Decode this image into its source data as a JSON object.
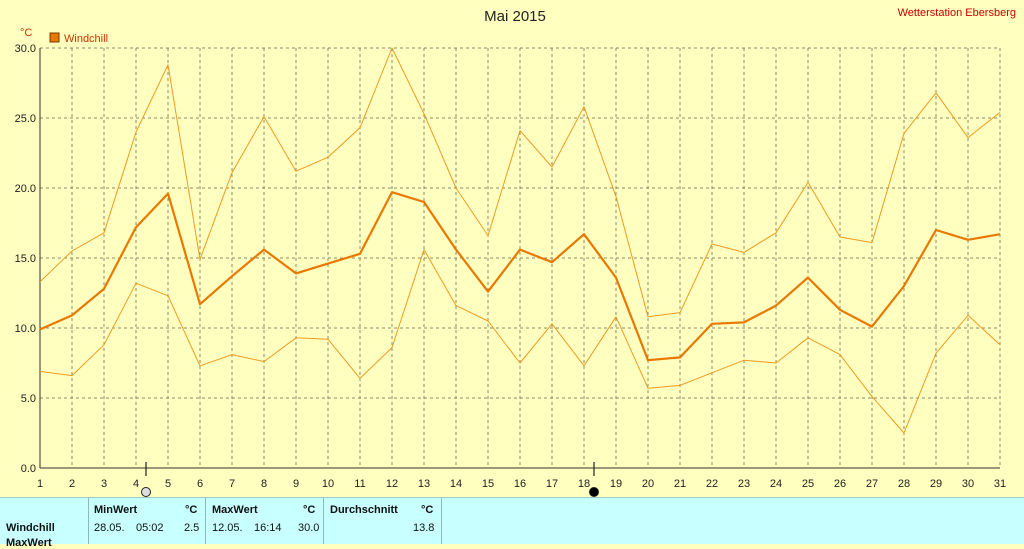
{
  "chart_data": {
    "type": "line",
    "title": "Mai 2015",
    "station": "Wetterstation Ebersberg",
    "yunit": "°C",
    "legend": "Windchill",
    "legend_placement": "top-left",
    "grid": true,
    "ylim": [
      0,
      30
    ],
    "yticks": [
      "0.0",
      "5.0",
      "10.0",
      "15.0",
      "20.0",
      "25.0",
      "30.0"
    ],
    "x": [
      1,
      2,
      3,
      4,
      5,
      6,
      7,
      8,
      9,
      10,
      11,
      12,
      13,
      14,
      15,
      16,
      17,
      18,
      19,
      20,
      21,
      22,
      23,
      24,
      25,
      26,
      27,
      28,
      29,
      30,
      31
    ],
    "series": [
      {
        "name": "Windchill",
        "values": [
          9.9,
          10.9,
          12.8,
          17.2,
          19.6,
          11.7,
          13.7,
          15.6,
          13.9,
          14.6,
          15.3,
          19.7,
          19.0,
          15.6,
          12.6,
          15.6,
          14.7,
          16.7,
          13.6,
          7.7,
          7.9,
          10.3,
          10.4,
          11.6,
          13.6,
          11.3,
          10.1,
          13.0,
          17.0,
          16.3,
          16.7
        ]
      },
      {
        "name": "max",
        "values": [
          13.3,
          15.5,
          16.8,
          24.0,
          28.8,
          14.9,
          21.1,
          25.1,
          21.2,
          22.2,
          24.3,
          30.0,
          25.3,
          20.0,
          16.6,
          24.1,
          21.5,
          25.8,
          19.4,
          10.8,
          11.1,
          16.0,
          15.4,
          16.8,
          20.4,
          16.5,
          16.1,
          23.9,
          26.8,
          23.6,
          25.4
        ]
      },
      {
        "name": "min",
        "values": [
          6.9,
          6.6,
          8.8,
          13.2,
          12.3,
          7.3,
          8.1,
          7.6,
          9.3,
          9.2,
          6.4,
          8.6,
          15.6,
          11.6,
          10.5,
          7.5,
          10.3,
          7.3,
          10.8,
          5.7,
          5.9,
          6.8,
          7.7,
          7.5,
          9.3,
          8.1,
          5.1,
          2.5,
          8.2,
          10.9,
          8.8
        ]
      }
    ],
    "markers": [
      {
        "day": 4,
        "symbol": "first-quarter-moon"
      },
      {
        "day": 18,
        "symbol": "new-moon"
      }
    ],
    "colors": {
      "mean": "#e87800",
      "range": "#f09a20",
      "grid": "#8a8a70"
    }
  },
  "stats": {
    "col_min": "MinWert",
    "col_max": "MaxWert",
    "col_avg": "Durchschnitt",
    "unit": "°C",
    "rows": [
      {
        "label": "Windchill",
        "min_date": "28.05.",
        "min_time": "05:02",
        "min_val": "2.5",
        "max_date": "12.05.",
        "max_time": "16:14",
        "max_val": "30.0",
        "avg": "13.8"
      },
      {
        "label": "MaxWert"
      }
    ]
  }
}
